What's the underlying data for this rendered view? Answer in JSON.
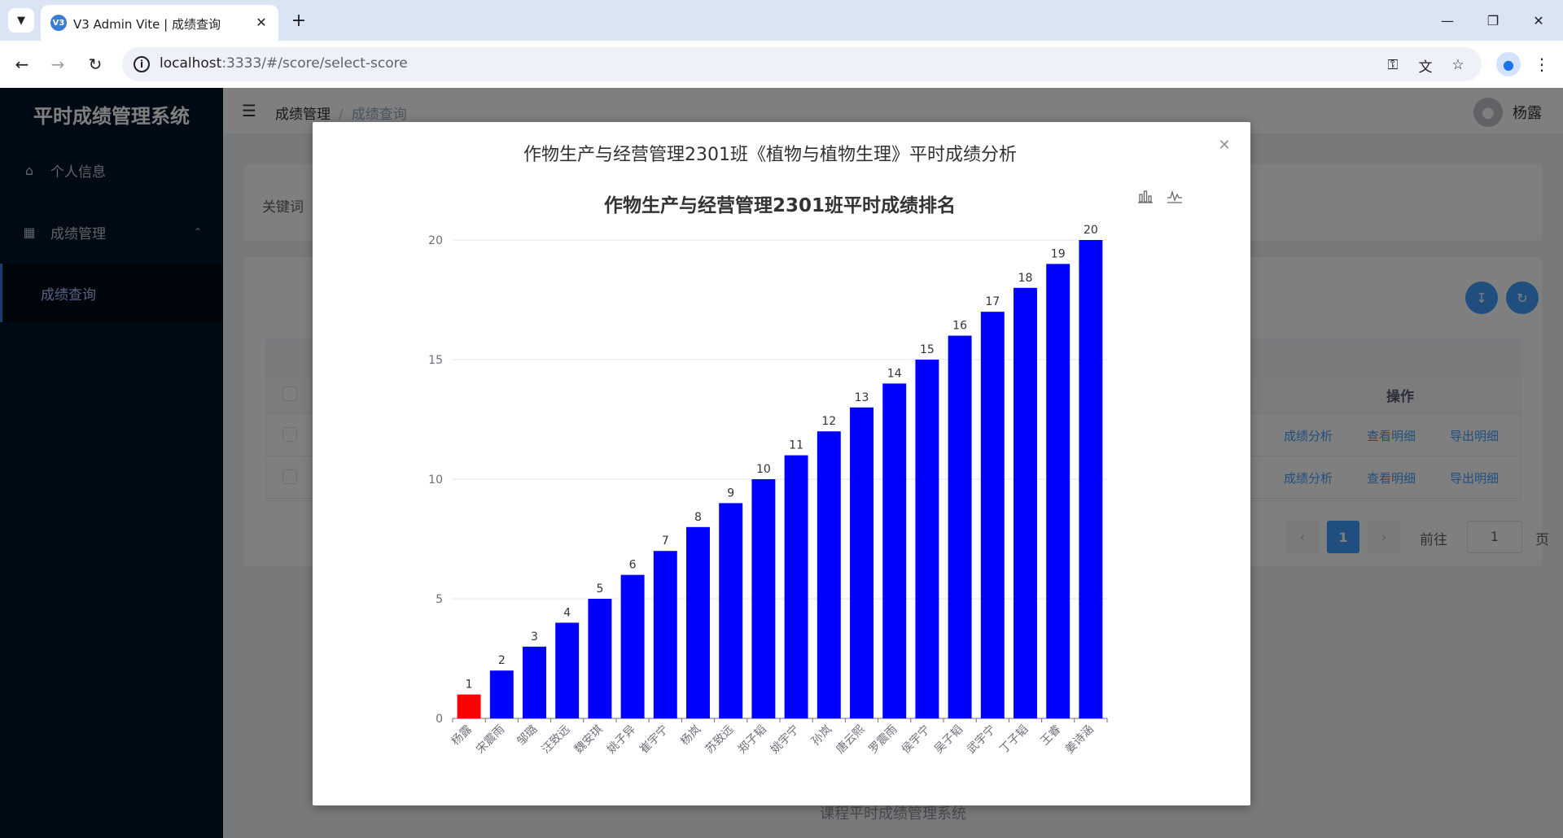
{
  "browser": {
    "tab_title": "V3 Admin Vite | 成绩查询",
    "tab_favicon": "V3",
    "url_host": "localhost",
    "url_rest": ":3333/#/score/select-score"
  },
  "sidebar": {
    "logo": "平时成绩管理系统",
    "items": [
      {
        "label": "个人信息",
        "icon": "home-icon"
      },
      {
        "label": "成绩管理",
        "icon": "grid-icon"
      }
    ],
    "sub_items": [
      {
        "label": "成绩查询"
      }
    ]
  },
  "header": {
    "breadcrumb": [
      "成绩管理",
      "成绩查询"
    ],
    "user_name": "杨露"
  },
  "search": {
    "keyword_label": "关键词"
  },
  "table": {
    "op_header": "操作",
    "rows": [
      {
        "actions": [
          "成绩分析",
          "查看明细",
          "导出明细"
        ]
      },
      {
        "actions": [
          "成绩分析",
          "查看明细",
          "导出明细"
        ]
      }
    ]
  },
  "pagination": {
    "current": "1",
    "goto_label": "前往",
    "goto_value": "1",
    "page_suffix": "页"
  },
  "footer": "课程平时成绩管理系统",
  "dialog": {
    "title": "作物生产与经营管理2301班《植物与植物生理》平时成绩分析"
  },
  "chart_data": {
    "type": "bar",
    "title": "作物生产与经营管理2301班平时成绩排名",
    "categories": [
      "杨露",
      "宋震雨",
      "邹璐",
      "汪致远",
      "魏安琪",
      "姚子异",
      "崔宇宁",
      "杨岚",
      "苏致远",
      "郑子韬",
      "姚宇宁",
      "孙岚",
      "唐云熙",
      "罗震雨",
      "侯宇宁",
      "吴子韬",
      "武宇宁",
      "丁子韬",
      "王睿",
      "姜诗涵"
    ],
    "values": [
      1,
      2,
      3,
      4,
      5,
      6,
      7,
      8,
      9,
      10,
      11,
      12,
      13,
      14,
      15,
      16,
      17,
      18,
      19,
      20
    ],
    "highlight_index": 0,
    "bar_color": "#0000ff",
    "highlight_color": "#ff0000",
    "ylim": [
      0,
      20
    ],
    "yticks": [
      0,
      5,
      10,
      15,
      20
    ],
    "grid": true
  }
}
